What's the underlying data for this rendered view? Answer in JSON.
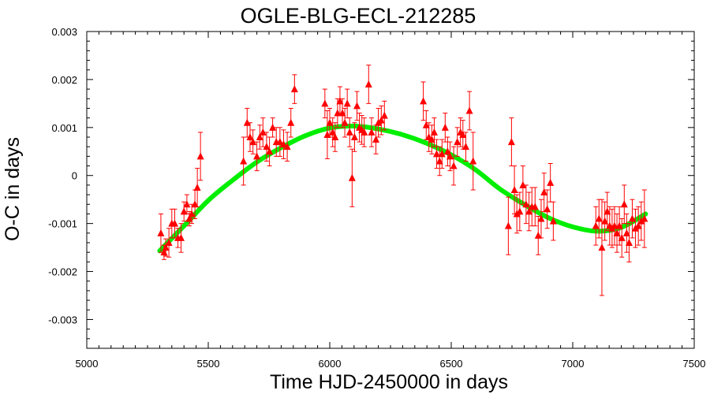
{
  "chart_data": {
    "type": "scatter",
    "title": "OGLE-BLG-ECL-212285",
    "xlabel": "Time HJD-2450000 in days",
    "ylabel": "O-C in days",
    "xlim": [
      5000,
      7500
    ],
    "ylim": [
      -0.0036,
      0.003
    ],
    "x_ticks": [
      5000,
      5500,
      6000,
      6500,
      7000,
      7500
    ],
    "x_tick_labels": [
      "5000",
      "5500",
      "6000",
      "6500",
      "7000",
      "7500"
    ],
    "y_ticks": [
      0.003,
      0.002,
      0.001,
      0,
      -0.001,
      -0.002,
      -0.003
    ],
    "y_tick_labels": [
      "0.003",
      "0.002",
      "0.001",
      "0",
      "-0.001",
      "-0.002",
      "-0.003"
    ],
    "grid": false,
    "colors": {
      "points": "#ff0000",
      "fit": "#00ee00",
      "axes": "#000000"
    },
    "series": [
      {
        "kind": "points_with_errorbars",
        "points": [
          {
            "x": 5305,
            "y": -0.0012,
            "err": 0.0004
          },
          {
            "x": 5318,
            "y": -0.0016,
            "err": 0.00015
          },
          {
            "x": 5325,
            "y": -0.0015,
            "err": 0.00018
          },
          {
            "x": 5338,
            "y": -0.0014,
            "err": 0.0003
          },
          {
            "x": 5350,
            "y": -0.001,
            "err": 0.0003
          },
          {
            "x": 5362,
            "y": -0.001,
            "err": 0.0003
          },
          {
            "x": 5375,
            "y": -0.0013,
            "err": 0.0002
          },
          {
            "x": 5388,
            "y": -0.0013,
            "err": 0.0003
          },
          {
            "x": 5400,
            "y": -0.00075,
            "err": 0.0002
          },
          {
            "x": 5412,
            "y": -0.0006,
            "err": 0.0002
          },
          {
            "x": 5422,
            "y": -0.0009,
            "err": 0.00015
          },
          {
            "x": 5432,
            "y": -0.0008,
            "err": 0.0002
          },
          {
            "x": 5445,
            "y": -0.0006,
            "err": 0.0003
          },
          {
            "x": 5455,
            "y": -0.00025,
            "err": 0.0004
          },
          {
            "x": 5468,
            "y": 0.0004,
            "err": 0.0005
          },
          {
            "x": 5645,
            "y": 0.0003,
            "err": 0.0005
          },
          {
            "x": 5660,
            "y": 0.0011,
            "err": 0.0003
          },
          {
            "x": 5672,
            "y": 0.0008,
            "err": 0.0003
          },
          {
            "x": 5684,
            "y": 0.0007,
            "err": 0.00025
          },
          {
            "x": 5700,
            "y": 0.0004,
            "err": 0.0003
          },
          {
            "x": 5712,
            "y": 0.0008,
            "err": 0.00025
          },
          {
            "x": 5725,
            "y": 0.0009,
            "err": 0.0003
          },
          {
            "x": 5740,
            "y": 0.0006,
            "err": 0.0003
          },
          {
            "x": 5752,
            "y": 0.0005,
            "err": 0.0003
          },
          {
            "x": 5765,
            "y": 0.001,
            "err": 0.0002
          },
          {
            "x": 5780,
            "y": 0.0007,
            "err": 0.0003
          },
          {
            "x": 5795,
            "y": 0.0007,
            "err": 0.0003
          },
          {
            "x": 5810,
            "y": 0.00065,
            "err": 0.0003
          },
          {
            "x": 5825,
            "y": 0.0006,
            "err": 0.0003
          },
          {
            "x": 5840,
            "y": 0.0011,
            "err": 0.0003
          },
          {
            "x": 5855,
            "y": 0.0018,
            "err": 0.0003
          },
          {
            "x": 5980,
            "y": 0.0015,
            "err": 0.0003
          },
          {
            "x": 5990,
            "y": 0.00085,
            "err": 0.0005
          },
          {
            "x": 6000,
            "y": 0.0011,
            "err": 0.0003
          },
          {
            "x": 6012,
            "y": 0.0009,
            "err": 0.0003
          },
          {
            "x": 6022,
            "y": 0.0008,
            "err": 0.0003
          },
          {
            "x": 6032,
            "y": 0.0013,
            "err": 0.0003
          },
          {
            "x": 6042,
            "y": 0.00155,
            "err": 0.0003
          },
          {
            "x": 6052,
            "y": 0.0013,
            "err": 0.0003
          },
          {
            "x": 6062,
            "y": 0.0011,
            "err": 0.0003
          },
          {
            "x": 6072,
            "y": 0.0015,
            "err": 0.0003
          },
          {
            "x": 6082,
            "y": 0.0009,
            "err": 0.0003
          },
          {
            "x": 6092,
            "y": -5e-05,
            "err": 0.0006
          },
          {
            "x": 6102,
            "y": 0.0008,
            "err": 0.0003
          },
          {
            "x": 6112,
            "y": 0.00145,
            "err": 0.0003
          },
          {
            "x": 6122,
            "y": 0.001,
            "err": 0.0003
          },
          {
            "x": 6132,
            "y": 0.00095,
            "err": 0.0003
          },
          {
            "x": 6142,
            "y": 0.0009,
            "err": 0.0003
          },
          {
            "x": 6160,
            "y": 0.0019,
            "err": 0.0004
          },
          {
            "x": 6172,
            "y": 0.0009,
            "err": 0.0003
          },
          {
            "x": 6190,
            "y": 0.00075,
            "err": 0.0003
          },
          {
            "x": 6200,
            "y": 0.0011,
            "err": 0.0003
          },
          {
            "x": 6212,
            "y": 0.00115,
            "err": 0.0003
          },
          {
            "x": 6225,
            "y": 0.00125,
            "err": 0.0003
          },
          {
            "x": 6385,
            "y": 0.00155,
            "err": 0.0004
          },
          {
            "x": 6397,
            "y": 0.00105,
            "err": 0.0003
          },
          {
            "x": 6408,
            "y": 0.0008,
            "err": 0.0003
          },
          {
            "x": 6420,
            "y": 0.00075,
            "err": 0.0003
          },
          {
            "x": 6430,
            "y": 0.0009,
            "err": 0.0003
          },
          {
            "x": 6440,
            "y": 0.00045,
            "err": 0.0003
          },
          {
            "x": 6452,
            "y": 0.0003,
            "err": 0.0003
          },
          {
            "x": 6462,
            "y": 0.00045,
            "err": 0.0003
          },
          {
            "x": 6475,
            "y": 0.001,
            "err": 0.0003
          },
          {
            "x": 6485,
            "y": 0.0005,
            "err": 0.0003
          },
          {
            "x": 6495,
            "y": 0.0004,
            "err": 0.0003
          },
          {
            "x": 6510,
            "y": 0.0002,
            "err": 0.0004
          },
          {
            "x": 6525,
            "y": 0.0007,
            "err": 0.0003
          },
          {
            "x": 6538,
            "y": 0.0009,
            "err": 0.0003
          },
          {
            "x": 6548,
            "y": 0.00085,
            "err": 0.0003
          },
          {
            "x": 6560,
            "y": 0.0006,
            "err": 0.0003
          },
          {
            "x": 6575,
            "y": 0.00135,
            "err": 0.0004
          },
          {
            "x": 6590,
            "y": 0.0003,
            "err": 0.0006
          },
          {
            "x": 6735,
            "y": -0.00105,
            "err": 0.0006
          },
          {
            "x": 6748,
            "y": 0.0007,
            "err": 0.0005
          },
          {
            "x": 6760,
            "y": -0.0003,
            "err": 0.0005
          },
          {
            "x": 6770,
            "y": -0.0008,
            "err": 0.0004
          },
          {
            "x": 6782,
            "y": -0.00075,
            "err": 0.0004
          },
          {
            "x": 6795,
            "y": -0.0002,
            "err": 0.0004
          },
          {
            "x": 6808,
            "y": -0.0006,
            "err": 0.0004
          },
          {
            "x": 6820,
            "y": -0.00075,
            "err": 0.0004
          },
          {
            "x": 6832,
            "y": -0.00065,
            "err": 0.0004
          },
          {
            "x": 6845,
            "y": -0.00065,
            "err": 0.0004
          },
          {
            "x": 6858,
            "y": -0.00125,
            "err": 0.0004
          },
          {
            "x": 6870,
            "y": -0.0009,
            "err": 0.0004
          },
          {
            "x": 6882,
            "y": -0.00035,
            "err": 0.0004
          },
          {
            "x": 6895,
            "y": -0.0007,
            "err": 0.0004
          },
          {
            "x": 6908,
            "y": -0.00015,
            "err": 0.0004
          },
          {
            "x": 6920,
            "y": -0.00095,
            "err": 0.0004
          },
          {
            "x": 7095,
            "y": -0.00105,
            "err": 0.0004
          },
          {
            "x": 7108,
            "y": -0.0009,
            "err": 0.0004
          },
          {
            "x": 7120,
            "y": -0.0015,
            "err": 0.001
          },
          {
            "x": 7132,
            "y": -0.00095,
            "err": 0.0004
          },
          {
            "x": 7142,
            "y": -0.00075,
            "err": 0.0004
          },
          {
            "x": 7152,
            "y": -0.00105,
            "err": 0.0004
          },
          {
            "x": 7162,
            "y": -0.0011,
            "err": 0.0004
          },
          {
            "x": 7172,
            "y": -0.00105,
            "err": 0.0004
          },
          {
            "x": 7182,
            "y": -0.0012,
            "err": 0.0004
          },
          {
            "x": 7192,
            "y": -0.00105,
            "err": 0.0004
          },
          {
            "x": 7202,
            "y": -0.0013,
            "err": 0.0004
          },
          {
            "x": 7212,
            "y": -0.0006,
            "err": 0.0004
          },
          {
            "x": 7222,
            "y": -0.0012,
            "err": 0.0004
          },
          {
            "x": 7232,
            "y": -0.0014,
            "err": 0.0004
          },
          {
            "x": 7245,
            "y": -0.0009,
            "err": 0.0004
          },
          {
            "x": 7258,
            "y": -0.0011,
            "err": 0.0004
          },
          {
            "x": 7270,
            "y": -0.00105,
            "err": 0.0004
          },
          {
            "x": 7282,
            "y": -0.00095,
            "err": 0.0004
          },
          {
            "x": 7295,
            "y": -0.0009,
            "err": 0.0006
          }
        ]
      },
      {
        "kind": "fit_curve",
        "x": [
          5300,
          5400,
          5500,
          5600,
          5700,
          5800,
          5900,
          6000,
          6100,
          6200,
          6300,
          6400,
          6500,
          6600,
          6700,
          6800,
          6900,
          7000,
          7100,
          7200,
          7300
        ],
        "y": [
          -0.00157,
          -0.00105,
          -0.00052,
          -0.0001,
          0.00028,
          0.00058,
          0.00083,
          0.00099,
          0.00103,
          0.00097,
          0.00085,
          0.00067,
          0.00043,
          0.00012,
          -0.00028,
          -0.0006,
          -0.00088,
          -0.00107,
          -0.00116,
          -0.00108,
          -0.0008
        ]
      }
    ]
  }
}
